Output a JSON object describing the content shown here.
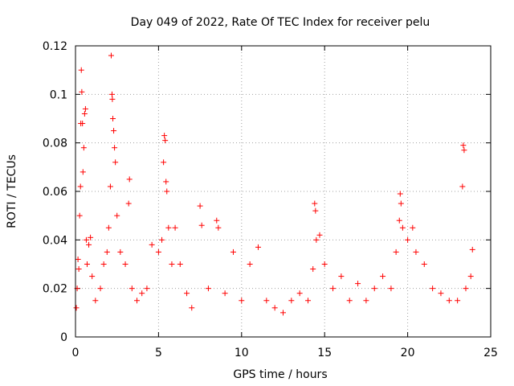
{
  "chart_data": {
    "type": "scatter",
    "title": "Day 049 of 2022, Rate Of TEC Index for receiver pelu",
    "xlabel": "GPS time / hours",
    "ylabel": "ROTI / TECUs",
    "xlim": [
      0,
      25
    ],
    "ylim": [
      0,
      0.12
    ],
    "x_ticks": [
      0,
      5,
      10,
      15,
      20,
      25
    ],
    "x_tick_labels": [
      "0",
      "5",
      "10",
      "15",
      "20",
      "25"
    ],
    "y_ticks": [
      0,
      0.02,
      0.04,
      0.06,
      0.08,
      0.1,
      0.12
    ],
    "y_tick_labels": [
      "0",
      "0.02",
      "0.04",
      "0.06",
      "0.08",
      "0.1",
      "0.12"
    ],
    "grid": true,
    "marker": "+",
    "colors": {
      "series": "#ff0000",
      "grid": "#a0a0a0",
      "axes": "#000000"
    },
    "series": [
      {
        "name": "ROTI",
        "points": [
          [
            0.05,
            0.012
          ],
          [
            0.1,
            0.02
          ],
          [
            0.15,
            0.032
          ],
          [
            0.2,
            0.028
          ],
          [
            0.25,
            0.05
          ],
          [
            0.3,
            0.062
          ],
          [
            0.32,
            0.088
          ],
          [
            0.35,
            0.11
          ],
          [
            0.38,
            0.101
          ],
          [
            0.42,
            0.088
          ],
          [
            0.45,
            0.068
          ],
          [
            0.5,
            0.078
          ],
          [
            0.55,
            0.092
          ],
          [
            0.6,
            0.094
          ],
          [
            0.65,
            0.04
          ],
          [
            0.7,
            0.03
          ],
          [
            0.8,
            0.038
          ],
          [
            0.9,
            0.041
          ],
          [
            1.0,
            0.025
          ],
          [
            1.2,
            0.015
          ],
          [
            1.5,
            0.02
          ],
          [
            1.7,
            0.03
          ],
          [
            1.9,
            0.035
          ],
          [
            2.0,
            0.045
          ],
          [
            2.1,
            0.062
          ],
          [
            2.15,
            0.116
          ],
          [
            2.2,
            0.1
          ],
          [
            2.22,
            0.098
          ],
          [
            2.25,
            0.09
          ],
          [
            2.3,
            0.085
          ],
          [
            2.35,
            0.078
          ],
          [
            2.4,
            0.072
          ],
          [
            2.5,
            0.05
          ],
          [
            2.7,
            0.035
          ],
          [
            3.0,
            0.03
          ],
          [
            3.2,
            0.055
          ],
          [
            3.25,
            0.065
          ],
          [
            3.4,
            0.02
          ],
          [
            3.7,
            0.015
          ],
          [
            4.0,
            0.018
          ],
          [
            4.3,
            0.02
          ],
          [
            4.6,
            0.038
          ],
          [
            5.0,
            0.035
          ],
          [
            5.2,
            0.04
          ],
          [
            5.3,
            0.072
          ],
          [
            5.35,
            0.083
          ],
          [
            5.4,
            0.081
          ],
          [
            5.45,
            0.064
          ],
          [
            5.5,
            0.06
          ],
          [
            5.6,
            0.045
          ],
          [
            5.8,
            0.03
          ],
          [
            6.0,
            0.045
          ],
          [
            6.3,
            0.03
          ],
          [
            6.7,
            0.018
          ],
          [
            7.0,
            0.012
          ],
          [
            7.5,
            0.054
          ],
          [
            7.6,
            0.046
          ],
          [
            8.0,
            0.02
          ],
          [
            8.5,
            0.048
          ],
          [
            8.6,
            0.045
          ],
          [
            9.0,
            0.018
          ],
          [
            9.5,
            0.035
          ],
          [
            10.0,
            0.015
          ],
          [
            10.5,
            0.03
          ],
          [
            11.0,
            0.037
          ],
          [
            11.5,
            0.015
          ],
          [
            12.0,
            0.012
          ],
          [
            12.5,
            0.01
          ],
          [
            13.0,
            0.015
          ],
          [
            13.5,
            0.018
          ],
          [
            14.0,
            0.015
          ],
          [
            14.3,
            0.028
          ],
          [
            14.4,
            0.055
          ],
          [
            14.45,
            0.052
          ],
          [
            14.5,
            0.04
          ],
          [
            14.7,
            0.042
          ],
          [
            15.0,
            0.03
          ],
          [
            15.5,
            0.02
          ],
          [
            16.0,
            0.025
          ],
          [
            16.5,
            0.015
          ],
          [
            17.0,
            0.022
          ],
          [
            17.5,
            0.015
          ],
          [
            18.0,
            0.02
          ],
          [
            18.5,
            0.025
          ],
          [
            19.0,
            0.02
          ],
          [
            19.3,
            0.035
          ],
          [
            19.5,
            0.048
          ],
          [
            19.55,
            0.059
          ],
          [
            19.6,
            0.055
          ],
          [
            19.7,
            0.045
          ],
          [
            20.0,
            0.04
          ],
          [
            20.3,
            0.045
          ],
          [
            20.5,
            0.035
          ],
          [
            21.0,
            0.03
          ],
          [
            21.5,
            0.02
          ],
          [
            22.0,
            0.018
          ],
          [
            22.5,
            0.015
          ],
          [
            23.0,
            0.015
          ],
          [
            23.3,
            0.062
          ],
          [
            23.35,
            0.079
          ],
          [
            23.4,
            0.077
          ],
          [
            23.5,
            0.02
          ],
          [
            23.8,
            0.025
          ],
          [
            23.9,
            0.036
          ]
        ]
      }
    ]
  }
}
